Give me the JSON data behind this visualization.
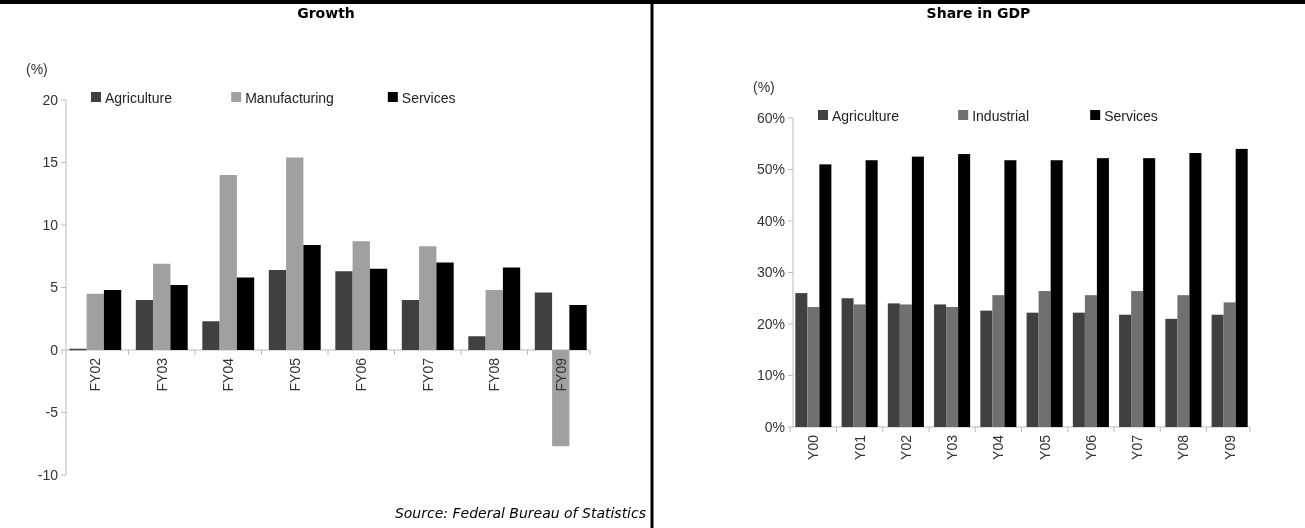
{
  "chart_data": [
    {
      "type": "bar",
      "title": "Growth",
      "ylabel": "(%)",
      "categories": [
        "FY02",
        "FY03",
        "FY04",
        "FY05",
        "FY06",
        "FY07",
        "FY08",
        "FY09"
      ],
      "series": [
        {
          "name": "Agriculture",
          "color": "#404040",
          "values": [
            0.1,
            4.0,
            2.3,
            6.4,
            6.3,
            4.0,
            1.1,
            4.6
          ]
        },
        {
          "name": "Manufacturing",
          "color": "#a0a0a0",
          "values": [
            4.5,
            6.9,
            14.0,
            15.4,
            8.7,
            8.3,
            4.8,
            -7.7
          ]
        },
        {
          "name": "Services",
          "color": "#000000",
          "values": [
            4.8,
            5.2,
            5.8,
            8.4,
            6.5,
            7.0,
            6.6,
            3.6
          ]
        }
      ],
      "ylim": [
        -10,
        20
      ],
      "yticks": [
        -10,
        -5,
        0,
        5,
        10,
        15,
        20
      ],
      "legend": "top",
      "grid": false,
      "annotations": [
        "Source: Federal Bureau of Statistics"
      ]
    },
    {
      "type": "bar",
      "title": "Share in GDP",
      "ylabel": "(%)",
      "categories": [
        "Y00",
        "Y01",
        "Y02",
        "Y03",
        "Y04",
        "Y05",
        "Y06",
        "Y07",
        "Y08",
        "Y09"
      ],
      "series": [
        {
          "name": "Agriculture",
          "color": "#404040",
          "values": [
            26,
            25,
            24,
            23.8,
            22.6,
            22.2,
            22.2,
            21.8,
            21,
            21.8
          ]
        },
        {
          "name": "Industrial",
          "color": "#707070",
          "values": [
            23.3,
            23.8,
            23.8,
            23.3,
            25.6,
            26.4,
            25.6,
            26.4,
            25.6,
            24.2
          ]
        },
        {
          "name": "Services",
          "color": "#000000",
          "values": [
            51,
            51.8,
            52.5,
            53,
            51.8,
            51.8,
            52.2,
            52.2,
            53.2,
            54
          ]
        }
      ],
      "ylim": [
        0,
        60
      ],
      "yticks": [
        {
          "value": 0,
          "label": "0%"
        },
        {
          "value": 10,
          "label": "10%"
        },
        {
          "value": 20,
          "label": "20%"
        },
        {
          "value": 30,
          "label": "30%"
        },
        {
          "value": 40,
          "label": "40%"
        },
        {
          "value": 50,
          "label": "50%"
        },
        {
          "value": 60,
          "label": "60%"
        }
      ],
      "legend": "top",
      "grid": false
    }
  ]
}
